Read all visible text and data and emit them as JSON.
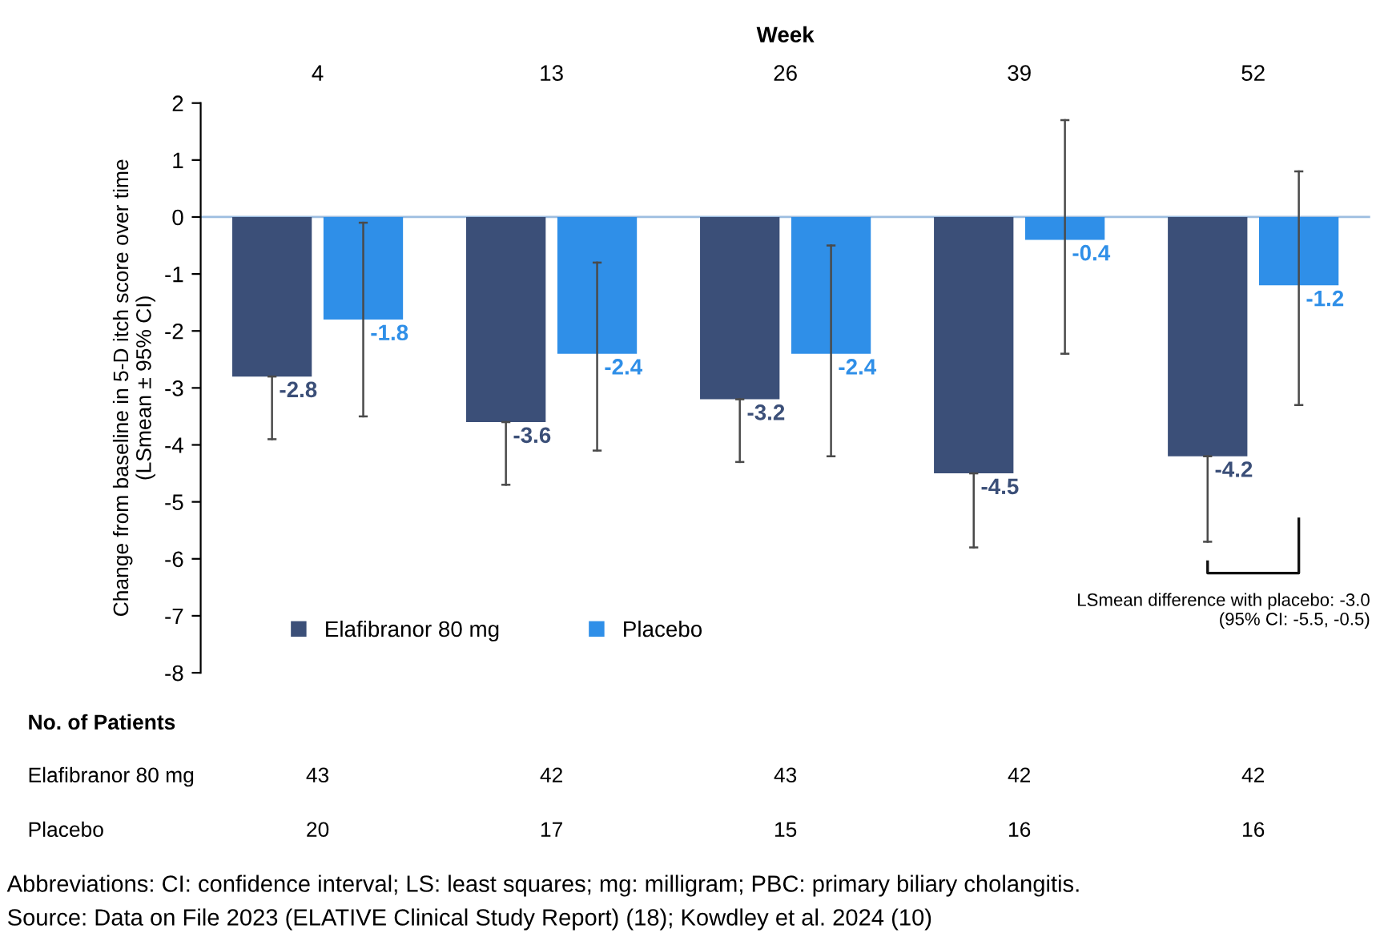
{
  "chart_data": {
    "type": "bar",
    "xlabel": "Week",
    "ylabel": "Change from baseline in 5-D itch score over time\n(LSmean ± 95% CI)",
    "categories": [
      "4",
      "13",
      "26",
      "39",
      "52"
    ],
    "series": [
      {
        "name": "Elafibranor 80 mg",
        "color": "#3b4f78",
        "values": [
          -2.8,
          -3.6,
          -3.2,
          -4.5,
          -4.2
        ],
        "errors": [
          [
            -3.9,
            -2.8
          ],
          [
            -4.7,
            -3.6
          ],
          [
            -4.3,
            -3.2
          ],
          [
            -5.8,
            -4.5
          ],
          [
            -5.7,
            -4.2
          ]
        ],
        "value_labels": [
          "-2.8",
          "-3.6",
          "-3.2",
          "-4.5",
          "-4.2"
        ]
      },
      {
        "name": "Placebo",
        "color": "#2f8fe8",
        "values": [
          -1.8,
          -2.4,
          -2.4,
          -0.4,
          -1.2
        ],
        "errors": [
          [
            -3.5,
            -0.1
          ],
          [
            -4.1,
            -0.8
          ],
          [
            -4.2,
            -0.5
          ],
          [
            -2.4,
            1.7
          ],
          [
            -3.3,
            0.8
          ]
        ],
        "value_labels": [
          "-1.8",
          "-2.4",
          "-2.4",
          "-0.4",
          "-1.2"
        ]
      }
    ],
    "ylim": [
      -8,
      2
    ],
    "yticks": [
      -8,
      -7,
      -6,
      -5,
      -4,
      -3,
      -2,
      -1,
      0,
      1,
      2
    ],
    "ref_lines": [
      {
        "axis": "y",
        "value": 0,
        "color": "#9dbde0"
      }
    ],
    "legend": "bottom left",
    "grid": false,
    "annotations": [
      "No. of Patients",
      "Elafibranor 80 mg",
      "43",
      "42",
      "43",
      "42",
      "42",
      "Placebo",
      "20",
      "17",
      "15",
      "16",
      "16",
      "LSmean difference with placebo: -3.0\n(95% CI: -5.5, -0.5)",
      "Abbreviations: CI: confidence interval; LS: least squares; mg: milligram; PBC: primary biliary cholangitis.",
      "Source: Data on File 2023 (ELATIVE Clinical Study Report) (18); Kowdley et al. 2024 (10)"
    ]
  }
}
